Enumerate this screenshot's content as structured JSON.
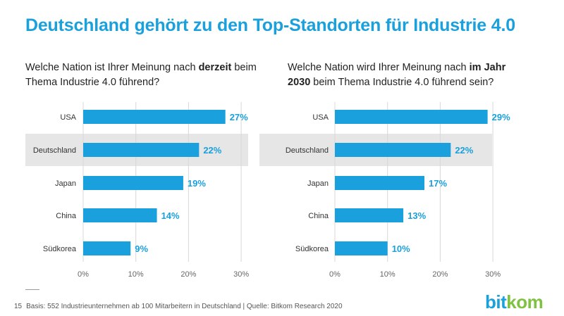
{
  "title": "Deutschland gehört zu den Top-Standorten für Industrie 4.0",
  "colors": {
    "accent": "#1aa0dc",
    "bar": "#1aa0dc",
    "highlight_band": "#e6e6e6",
    "logo_green": "#7fc242"
  },
  "chart_data": [
    {
      "type": "bar",
      "orientation": "horizontal",
      "title_parts": [
        "Welche Nation ist Ihrer Meinung nach ",
        "derzeit",
        " beim Thema Industrie 4.0 führend?"
      ],
      "categories": [
        "USA",
        "Deutschland",
        "Japan",
        "China",
        "Südkorea"
      ],
      "values": [
        27,
        22,
        19,
        14,
        9
      ],
      "value_labels": [
        "27%",
        "22%",
        "19%",
        "14%",
        "9%"
      ],
      "xlim": [
        0,
        30
      ],
      "x_ticks": [
        "0%",
        "10%",
        "20%",
        "30%"
      ],
      "highlight_category": "Deutschland",
      "grid": true
    },
    {
      "type": "bar",
      "orientation": "horizontal",
      "title_parts": [
        "Welche Nation wird Ihrer Meinung nach ",
        "im Jahr 2030",
        " beim Thema Industrie 4.0 führend sein?"
      ],
      "categories": [
        "USA",
        "Deutschland",
        "Japan",
        "China",
        "Südkorea"
      ],
      "values": [
        29,
        22,
        17,
        13,
        10
      ],
      "value_labels": [
        "29%",
        "22%",
        "17%",
        "13%",
        "10%"
      ],
      "xlim": [
        0,
        30
      ],
      "x_ticks": [
        "0%",
        "10%",
        "20%",
        "30%"
      ],
      "highlight_category": "Deutschland",
      "grid": true
    }
  ],
  "footer": {
    "page_number": "15",
    "source": "Basis: 552 Industrieunternehmen ab 100 Mitarbeitern in Deutschland | Quelle: Bitkom Research 2020"
  },
  "logo": {
    "part1": "bit",
    "part2": "kom"
  }
}
